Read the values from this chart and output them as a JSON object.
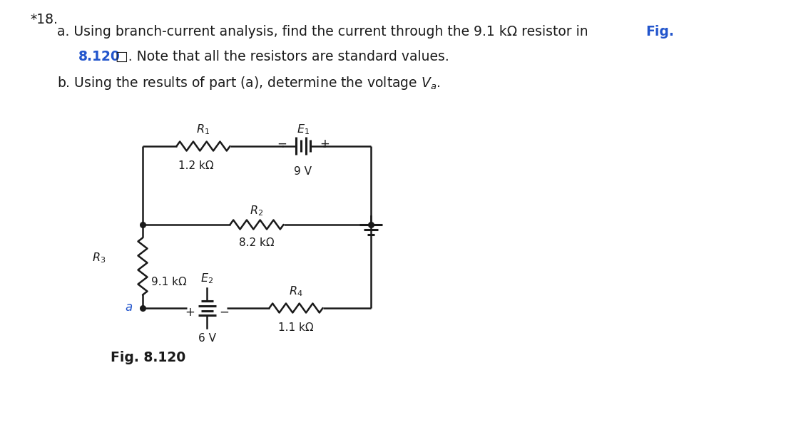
{
  "fig_bold_color": "#2255cc",
  "text_color": "#1a1a1a",
  "bg_color": "#ffffff",
  "R1_val": "1.2 kΩ",
  "R2_val": "8.2 kΩ",
  "R3_val": "9.1 kΩ",
  "R4_val": "1.1 kΩ",
  "E1_val": "9 V",
  "E2_val": "6 V",
  "node_a_label": "a",
  "fig_caption": "Fig. 8.120"
}
